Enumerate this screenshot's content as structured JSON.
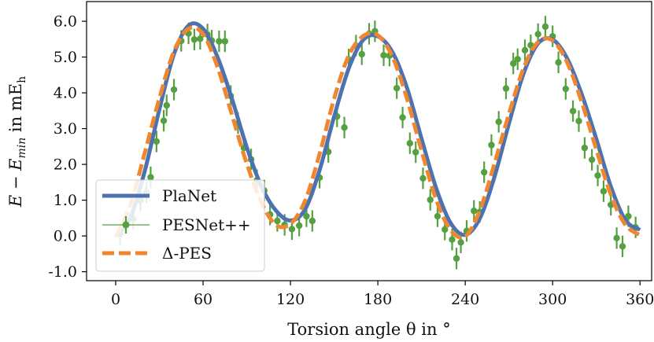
{
  "chart_data": {
    "type": "line",
    "xlabel": "Torsion angle θ in °",
    "ylabel": "E − E_min in mE_h",
    "ylabel_parts": {
      "main": "E − E",
      "sub1": "min",
      "mid": " in mE",
      "sub2": "h"
    },
    "xlim": [
      -20,
      368
    ],
    "ylim": [
      -1.25,
      6.55
    ],
    "xticks": [
      0,
      60,
      120,
      180,
      240,
      300,
      360
    ],
    "xtick_labels": [
      "0",
      "60",
      "120",
      "180",
      "240",
      "300",
      "360"
    ],
    "yticks": [
      -1.0,
      0.0,
      1.0,
      2.0,
      3.0,
      4.0,
      5.0,
      6.0
    ],
    "ytick_labels": [
      "-1.0",
      "0.0",
      "1.0",
      "2.0",
      "3.0",
      "4.0",
      "5.0",
      "6.0"
    ],
    "grid": false,
    "legend_position": "lower-left",
    "series": [
      {
        "name": "PlaNet",
        "style": "solid-line",
        "color": "#4c72b0",
        "x": [
          0,
          10,
          20,
          30,
          40,
          50,
          60,
          70,
          80,
          90,
          100,
          110,
          120,
          130,
          140,
          150,
          160,
          170,
          180,
          190,
          200,
          210,
          220,
          230,
          240,
          250,
          260,
          270,
          280,
          290,
          300,
          310,
          320,
          330,
          340,
          350,
          360
        ],
        "y": [
          0.0,
          0.51,
          1.82,
          3.54,
          5.08,
          5.88,
          5.79,
          4.99,
          3.81,
          2.48,
          1.39,
          0.71,
          0.43,
          0.74,
          1.84,
          3.34,
          4.68,
          5.48,
          5.58,
          5.14,
          4.14,
          2.72,
          1.34,
          0.36,
          0.03,
          0.49,
          1.64,
          3.14,
          4.53,
          5.38,
          5.49,
          4.96,
          3.96,
          2.71,
          1.38,
          0.44,
          0.17
        ]
      },
      {
        "name": "PESNet++",
        "style": "points-with-error-bars",
        "color": "#55a041",
        "error": 0.3,
        "x": [
          3,
          7,
          12,
          17,
          21,
          24,
          28,
          33,
          35,
          40,
          45,
          50,
          54,
          58,
          63,
          66,
          71,
          75,
          79,
          84,
          88,
          93,
          97,
          102,
          106,
          111,
          116,
          121,
          126,
          131,
          135,
          140,
          146,
          152,
          157,
          160,
          165,
          169,
          174,
          178,
          184,
          188,
          193,
          197,
          202,
          206,
          211,
          216,
          221,
          226,
          231,
          234,
          237,
          241,
          246,
          250,
          253,
          258,
          263,
          268,
          273,
          276,
          281,
          285,
          290,
          295,
          300,
          304,
          309,
          314,
          318,
          322,
          327,
          331,
          335,
          340,
          344,
          348,
          352,
          357
        ],
        "y": [
          0.05,
          0.36,
          0.48,
          0.99,
          1.21,
          1.64,
          2.64,
          3.22,
          3.65,
          4.09,
          5.45,
          5.66,
          5.49,
          5.51,
          5.63,
          5.46,
          5.44,
          5.44,
          3.91,
          3.15,
          2.46,
          2.14,
          1.56,
          1.27,
          0.6,
          0.42,
          0.31,
          0.19,
          0.29,
          0.55,
          0.42,
          1.63,
          2.35,
          3.34,
          3.03,
          4.93,
          5.32,
          5.08,
          5.65,
          5.72,
          5.05,
          5.04,
          4.13,
          3.31,
          2.59,
          2.34,
          1.61,
          1.01,
          0.55,
          0.18,
          -0.1,
          -0.63,
          -0.18,
          0.14,
          0.7,
          0.67,
          1.78,
          2.54,
          3.19,
          4.12,
          4.82,
          4.94,
          5.19,
          5.33,
          5.64,
          5.85,
          5.58,
          4.85,
          4.11,
          3.49,
          3.21,
          2.46,
          2.13,
          1.69,
          1.25,
          0.87,
          -0.06,
          -0.29,
          0.55,
          0.24
        ]
      },
      {
        "name": "Δ-PES",
        "style": "dashed-line",
        "color": "#f0872f",
        "x": [
          0,
          10,
          20,
          30,
          40,
          50,
          60,
          70,
          80,
          90,
          100,
          110,
          120,
          130,
          140,
          150,
          160,
          170,
          180,
          190,
          200,
          210,
          220,
          230,
          240,
          250,
          260,
          270,
          280,
          290,
          300,
          310,
          320,
          330,
          340,
          350,
          360
        ],
        "y": [
          -0.04,
          0.86,
          2.33,
          3.85,
          5.16,
          5.79,
          5.64,
          4.71,
          3.36,
          2.02,
          0.94,
          0.31,
          0.34,
          0.98,
          2.29,
          3.84,
          5.04,
          5.59,
          5.61,
          5.01,
          3.84,
          2.38,
          1.02,
          0.16,
          -0.01,
          0.71,
          2.01,
          3.41,
          4.68,
          5.42,
          5.46,
          4.85,
          3.74,
          2.42,
          1.15,
          0.31,
          0.02
        ]
      }
    ]
  }
}
